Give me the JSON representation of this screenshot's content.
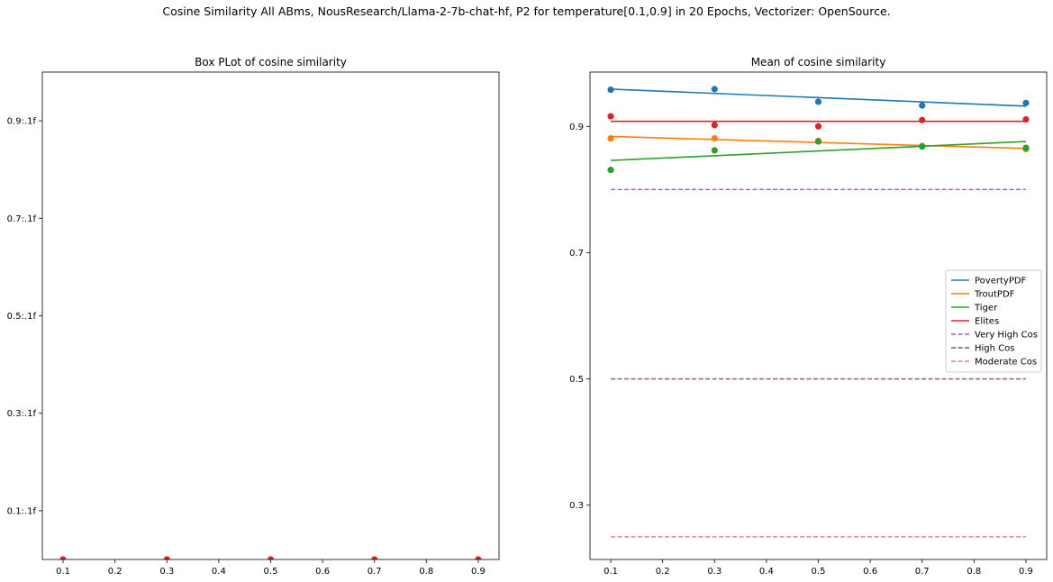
{
  "suptitle": "Cosine Similarity All ABms, NousResearch/Llama-2-7b-chat-hf, P2 for temperature[0.1,0.9] in 20 Epochs, Vectorizer: OpenSource.",
  "chart_data": [
    {
      "type": "box",
      "title": "Box PLot of cosine similarity",
      "xlabel": "",
      "ylabel": "",
      "xlim": [
        0.06,
        0.94
      ],
      "ylim": [
        0.0,
        1.0
      ],
      "x_ticks": [
        0.1,
        0.2,
        0.3,
        0.4,
        0.5,
        0.6,
        0.7,
        0.8,
        0.9
      ],
      "x_tick_labels": [
        "0.1",
        "0.2",
        "0.3",
        "0.4",
        "0.5",
        "0.6",
        "0.7",
        "0.8",
        "0.9"
      ],
      "y_ticks": [
        0.1,
        0.3,
        0.5,
        0.7,
        0.9
      ],
      "y_tick_labels": [
        "0.1:.1f",
        "0.3:.1f",
        "0.5:.1f",
        "0.7:.1f",
        "0.9:.1f"
      ],
      "points": [
        {
          "x": 0.1,
          "y": 0.0,
          "color": "#d62728"
        },
        {
          "x": 0.3,
          "y": 0.0,
          "color": "#d62728"
        },
        {
          "x": 0.5,
          "y": 0.0,
          "color": "#d62728"
        },
        {
          "x": 0.7,
          "y": 0.0,
          "color": "#d62728"
        },
        {
          "x": 0.9,
          "y": 0.0,
          "color": "#d62728"
        }
      ],
      "grid": false
    },
    {
      "type": "scatter",
      "title": "Mean of cosine similarity",
      "xlabel": "",
      "ylabel": "",
      "xlim": [
        0.06,
        0.94
      ],
      "ylim": [
        0.214,
        0.986
      ],
      "x_ticks": [
        0.1,
        0.2,
        0.3,
        0.4,
        0.5,
        0.6,
        0.7,
        0.8,
        0.9
      ],
      "x_tick_labels": [
        "0.1",
        "0.2",
        "0.3",
        "0.4",
        "0.5",
        "0.6",
        "0.7",
        "0.8",
        "0.9"
      ],
      "y_ticks": [
        0.3,
        0.5,
        0.7,
        0.9
      ],
      "y_tick_labels": [
        "0.3",
        "0.5",
        "0.7",
        "0.9"
      ],
      "x": [
        0.1,
        0.3,
        0.5,
        0.7,
        0.9
      ],
      "series": [
        {
          "name": "PovertyPDF",
          "color": "#1f77b4",
          "points": [
            0.958,
            0.959,
            0.939,
            0.933,
            0.937
          ],
          "trend": [
            0.959,
            0.932
          ]
        },
        {
          "name": "TroutPDF",
          "color": "#ff7f0e",
          "points": [
            0.881,
            0.881,
            0.877,
            0.869,
            0.864
          ],
          "trend": [
            0.884,
            0.865
          ]
        },
        {
          "name": "Tiger",
          "color": "#2ca02c",
          "points": [
            0.831,
            0.862,
            0.876,
            0.868,
            0.866
          ],
          "trend": [
            0.846,
            0.876
          ]
        },
        {
          "name": "Elites",
          "color": "#d62728",
          "points": [
            0.916,
            0.902,
            0.9,
            0.91,
            0.911
          ],
          "trend": [
            0.908,
            0.908
          ]
        }
      ],
      "reference_lines": [
        {
          "name": "Very High Cos",
          "color": "#9467bd",
          "y": 0.8,
          "style": "dashed"
        },
        {
          "name": "High Cos",
          "color": "#8c564b",
          "y": 0.5,
          "style": "dashed"
        },
        {
          "name": "Moderate Cos",
          "color": "#e377c2",
          "y": 0.25,
          "style": "dashed"
        }
      ],
      "legend": "center-right",
      "grid": false
    }
  ]
}
